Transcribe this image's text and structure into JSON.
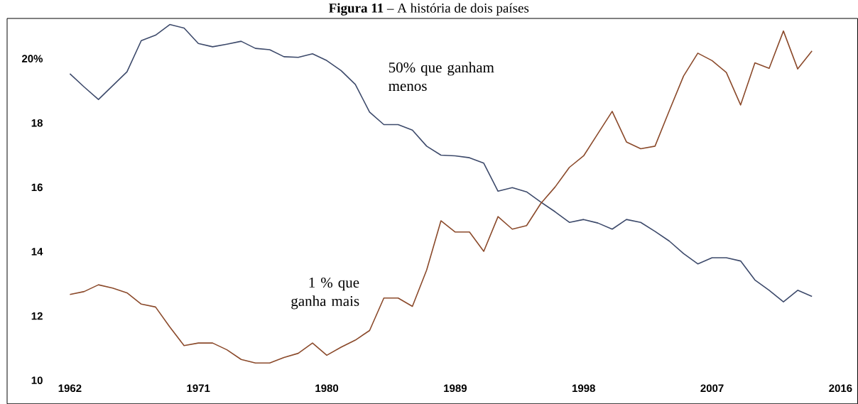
{
  "chart_data": {
    "type": "line",
    "title": "**Figura 11** – A história de dois países",
    "x": [
      1962,
      1963,
      1964,
      1965,
      1966,
      1967,
      1968,
      1969,
      1970,
      1971,
      1972,
      1973,
      1974,
      1975,
      1976,
      1977,
      1978,
      1979,
      1980,
      1981,
      1982,
      1983,
      1984,
      1985,
      1986,
      1987,
      1988,
      1989,
      1990,
      1991,
      1992,
      1993,
      1994,
      1995,
      1996,
      1997,
      1998,
      1999,
      2000,
      2001,
      2002,
      2003,
      2004,
      2005,
      2006,
      2007,
      2008,
      2009,
      2010,
      2011,
      2012,
      2013,
      2014
    ],
    "series": [
      {
        "name": "50% que ganham menos",
        "color": "#3d4a6b",
        "values": [
          19.53,
          19.12,
          18.73,
          19.16,
          19.59,
          20.56,
          20.73,
          21.06,
          20.95,
          20.47,
          20.37,
          20.45,
          20.54,
          20.32,
          20.28,
          20.06,
          20.04,
          20.15,
          19.94,
          19.63,
          19.2,
          18.34,
          17.95,
          17.95,
          17.78,
          17.28,
          17.0,
          16.98,
          16.92,
          16.75,
          15.88,
          15.99,
          15.86,
          15.54,
          15.24,
          14.91,
          15.0,
          14.89,
          14.7,
          15.0,
          14.91,
          14.63,
          14.33,
          13.94,
          13.62,
          13.81,
          13.81,
          13.71,
          13.12,
          12.8,
          12.44,
          12.8,
          12.61
        ]
      },
      {
        "name": "1 % que ganha mais",
        "color": "#8b4a2b",
        "values": [
          12.67,
          12.76,
          12.97,
          12.87,
          12.72,
          12.37,
          12.28,
          11.66,
          11.08,
          11.16,
          11.16,
          10.95,
          10.65,
          10.54,
          10.54,
          10.71,
          10.84,
          11.16,
          10.78,
          11.03,
          11.25,
          11.55,
          12.56,
          12.56,
          12.3,
          13.43,
          14.96,
          14.61,
          14.61,
          14.01,
          15.09,
          14.7,
          14.81,
          15.5,
          16.01,
          16.62,
          16.98,
          17.67,
          18.36,
          17.41,
          17.2,
          17.28,
          18.38,
          19.46,
          20.17,
          19.94,
          19.57,
          18.56,
          19.87,
          19.7,
          20.86,
          19.68,
          20.24
        ]
      }
    ],
    "xlim": [
      1957.6,
      2017.2
    ],
    "ylim": [
      9.27,
      21.25
    ],
    "xticks": [
      1962,
      1971,
      1980,
      1989,
      1998,
      2007,
      2016
    ],
    "yticks": [
      10,
      12,
      14,
      16,
      18,
      {
        "value": 20,
        "label": "20%"
      }
    ],
    "grid": false,
    "legend": false
  }
}
